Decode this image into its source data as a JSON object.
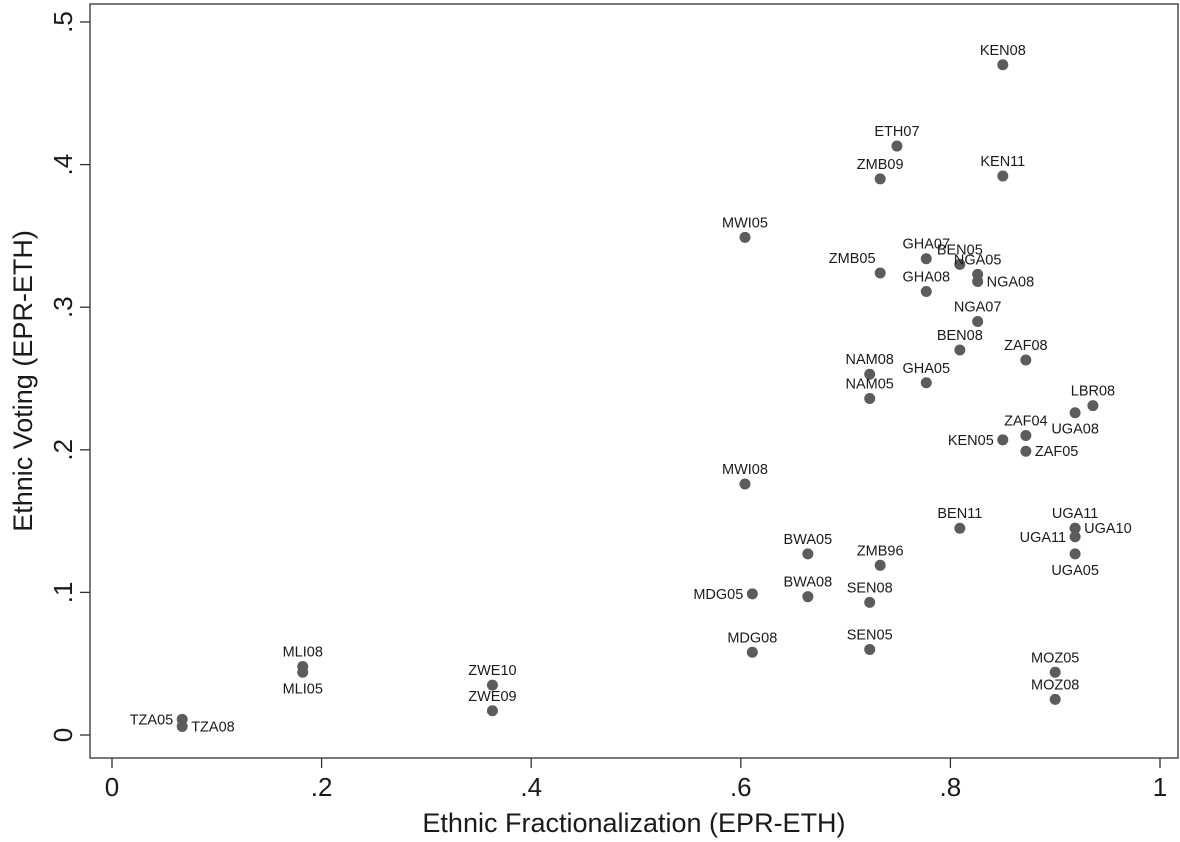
{
  "chart_data": {
    "type": "scatter",
    "xlabel": "Ethnic Fractionalization (EPR-ETH)",
    "ylabel": "Ethnic Voting (EPR-ETH)",
    "xlim": [
      0,
      1
    ],
    "ylim": [
      -0.01,
      0.505
    ],
    "xticks": [
      {
        "value": 0,
        "label": "0"
      },
      {
        "value": 0.2,
        "label": ".2"
      },
      {
        "value": 0.4,
        "label": ".4"
      },
      {
        "value": 0.6,
        "label": ".6"
      },
      {
        "value": 0.8,
        "label": ".8"
      },
      {
        "value": 1,
        "label": "1"
      }
    ],
    "yticks": [
      {
        "value": 0,
        "label": "0"
      },
      {
        "value": 0.1,
        "label": ".1"
      },
      {
        "value": 0.2,
        "label": ".2"
      },
      {
        "value": 0.3,
        "label": ".3"
      },
      {
        "value": 0.4,
        "label": ".4"
      },
      {
        "value": 0.5,
        "label": ".5"
      }
    ],
    "grid": false,
    "marker_color": "#5c5c5c",
    "points": [
      {
        "label": "KEN08",
        "x": 0.85,
        "y": 0.47,
        "pos": "n"
      },
      {
        "label": "ETH07",
        "x": 0.749,
        "y": 0.413,
        "pos": "n"
      },
      {
        "label": "ZMB09",
        "x": 0.733,
        "y": 0.39,
        "pos": "n"
      },
      {
        "label": "KEN11",
        "x": 0.85,
        "y": 0.392,
        "pos": "n"
      },
      {
        "label": "MWI05",
        "x": 0.604,
        "y": 0.349,
        "pos": "n"
      },
      {
        "label": "GHA07",
        "x": 0.777,
        "y": 0.334,
        "pos": "n"
      },
      {
        "label": "BEN05",
        "x": 0.809,
        "y": 0.33,
        "pos": "n"
      },
      {
        "label": "ZMB05",
        "x": 0.733,
        "y": 0.324,
        "pos": "nw"
      },
      {
        "label": "NGA05",
        "x": 0.826,
        "y": 0.323,
        "pos": "n"
      },
      {
        "label": "NGA08",
        "x": 0.826,
        "y": 0.318,
        "pos": "e"
      },
      {
        "label": "GHA08",
        "x": 0.777,
        "y": 0.311,
        "pos": "n"
      },
      {
        "label": "NGA07",
        "x": 0.826,
        "y": 0.29,
        "pos": "n"
      },
      {
        "label": "BEN08",
        "x": 0.809,
        "y": 0.27,
        "pos": "n"
      },
      {
        "label": "ZAF08",
        "x": 0.872,
        "y": 0.263,
        "pos": "n"
      },
      {
        "label": "NAM08",
        "x": 0.723,
        "y": 0.253,
        "pos": "n"
      },
      {
        "label": "GHA05",
        "x": 0.777,
        "y": 0.247,
        "pos": "n"
      },
      {
        "label": "NAM05",
        "x": 0.723,
        "y": 0.236,
        "pos": "n"
      },
      {
        "label": "LBR08",
        "x": 0.936,
        "y": 0.231,
        "pos": "n"
      },
      {
        "label": "ZAF04",
        "x": 0.872,
        "y": 0.21,
        "pos": "n"
      },
      {
        "label": "UGA08",
        "x": 0.919,
        "y": 0.226,
        "pos": "s"
      },
      {
        "label": "KEN05",
        "x": 0.85,
        "y": 0.207,
        "pos": "w"
      },
      {
        "label": "ZAF05",
        "x": 0.872,
        "y": 0.199,
        "pos": "e"
      },
      {
        "label": "MWI08",
        "x": 0.604,
        "y": 0.176,
        "pos": "n"
      },
      {
        "label": "BEN11",
        "x": 0.809,
        "y": 0.145,
        "pos": "n"
      },
      {
        "label": "UGA11",
        "x": 0.919,
        "y": 0.145,
        "pos": "n"
      },
      {
        "label": "UGA10",
        "x": 0.919,
        "y": 0.145,
        "pos": "e"
      },
      {
        "label": "UGA11",
        "x": 0.919,
        "y": 0.139,
        "pos": "w"
      },
      {
        "label": "BWA05",
        "x": 0.664,
        "y": 0.127,
        "pos": "n"
      },
      {
        "label": "UGA05",
        "x": 0.919,
        "y": 0.127,
        "pos": "s"
      },
      {
        "label": "ZMB96",
        "x": 0.733,
        "y": 0.119,
        "pos": "n"
      },
      {
        "label": "MDG05",
        "x": 0.611,
        "y": 0.099,
        "pos": "w"
      },
      {
        "label": "BWA08",
        "x": 0.664,
        "y": 0.097,
        "pos": "n"
      },
      {
        "label": "SEN08",
        "x": 0.723,
        "y": 0.093,
        "pos": "n"
      },
      {
        "label": "SEN05",
        "x": 0.723,
        "y": 0.06,
        "pos": "n"
      },
      {
        "label": "MDG08",
        "x": 0.611,
        "y": 0.058,
        "pos": "n"
      },
      {
        "label": "MOZ05",
        "x": 0.9,
        "y": 0.044,
        "pos": "n"
      },
      {
        "label": "MOZ08",
        "x": 0.9,
        "y": 0.025,
        "pos": "n"
      },
      {
        "label": "MLI08",
        "x": 0.182,
        "y": 0.048,
        "pos": "n"
      },
      {
        "label": "MLI05",
        "x": 0.182,
        "y": 0.044,
        "pos": "s"
      },
      {
        "label": "ZWE10",
        "x": 0.363,
        "y": 0.035,
        "pos": "n"
      },
      {
        "label": "ZWE09",
        "x": 0.363,
        "y": 0.017,
        "pos": "n"
      },
      {
        "label": "TZA05",
        "x": 0.067,
        "y": 0.011,
        "pos": "w"
      },
      {
        "label": "TZA08",
        "x": 0.067,
        "y": 0.006,
        "pos": "e"
      }
    ]
  }
}
